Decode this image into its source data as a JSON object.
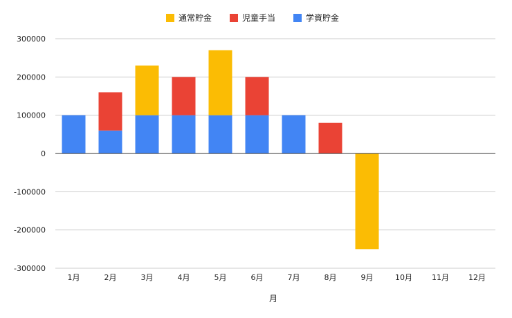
{
  "chart_data": {
    "type": "bar",
    "stacked": true,
    "title": "",
    "xlabel": "月",
    "ylabel": "",
    "categories": [
      "1月",
      "2月",
      "3月",
      "4月",
      "5月",
      "6月",
      "7月",
      "8月",
      "9月",
      "10月",
      "11月",
      "12月"
    ],
    "series": [
      {
        "name": "学資貯金",
        "color": "#4285F4",
        "values": [
          100000,
          60000,
          100000,
          100000,
          100000,
          100000,
          100000,
          0,
          0,
          0,
          0,
          0
        ]
      },
      {
        "name": "児童手当",
        "color": "#EA4335",
        "values": [
          0,
          100000,
          0,
          100000,
          0,
          100000,
          0,
          80000,
          0,
          0,
          0,
          0
        ]
      },
      {
        "name": "通常貯金",
        "color": "#FBBC04",
        "values": [
          0,
          0,
          130000,
          0,
          170000,
          0,
          0,
          0,
          -250000,
          0,
          0,
          0
        ]
      }
    ],
    "legend_order": [
      "通常貯金",
      "児童手当",
      "学資貯金"
    ],
    "ylim": [
      -300000,
      300000
    ],
    "yticks": [
      -300000,
      -200000,
      -100000,
      0,
      100000,
      200000,
      300000
    ],
    "grid": true,
    "legend_position": "top"
  }
}
